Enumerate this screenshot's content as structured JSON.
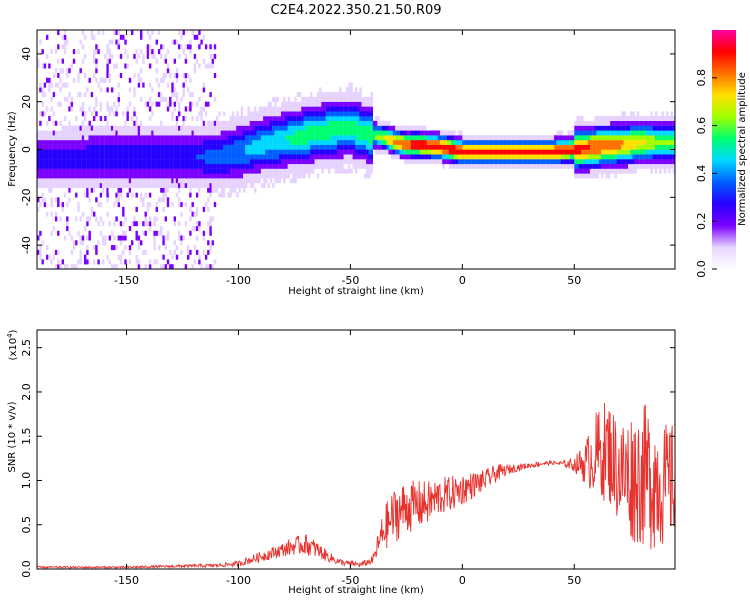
{
  "figure": {
    "title": "C2E4.2022.350.21.50.R09"
  },
  "chart_data": [
    {
      "type": "heatmap",
      "title": "C2E4.2022.350.21.50.R09",
      "xlabel": "Height of straight line (km)",
      "ylabel": "Frequency (Hz)",
      "xlim": [
        -190,
        95
      ],
      "ylim": [
        -50,
        50
      ],
      "xticks": [
        -150,
        -100,
        -50,
        0,
        50
      ],
      "yticks": [
        -40,
        -20,
        0,
        20,
        40
      ],
      "colorbar": {
        "label": "Normalized spectral amplitude",
        "range": [
          0,
          1
        ],
        "ticks": [
          "0.0",
          "0.2",
          "0.4",
          "0.6",
          "0.8"
        ],
        "colormap": [
          "#ffffff",
          "#e6d3ff",
          "#7a00ff",
          "#2600ff",
          "#0060ff",
          "#00d8ff",
          "#00ff70",
          "#a0ff00",
          "#ffe000",
          "#ff7000",
          "#ff0000",
          "#ff00a0"
        ]
      },
      "ridge": {
        "height_km": [
          -180,
          -160,
          -140,
          -125,
          -110,
          -100,
          -90,
          -80,
          -70,
          -60,
          -50,
          -45,
          -40,
          -35,
          -30,
          -25,
          -20,
          -10,
          0,
          10,
          20,
          30,
          40,
          50,
          60,
          70,
          80,
          90,
          95
        ],
        "frequency_hz": [
          -5,
          -4,
          -4,
          -4,
          -4,
          -2,
          1,
          3,
          5,
          7,
          8,
          6,
          5,
          4,
          2,
          1,
          1,
          0,
          -2,
          -2,
          -2,
          -2,
          -2,
          -1,
          0,
          1,
          2,
          2,
          2
        ],
        "peak_amplitude": [
          0.25,
          0.3,
          0.3,
          0.3,
          0.35,
          0.4,
          0.45,
          0.5,
          0.55,
          0.55,
          0.55,
          0.55,
          0.6,
          0.7,
          0.85,
          0.9,
          0.95,
          0.95,
          0.95,
          0.95,
          0.95,
          0.95,
          0.95,
          0.9,
          0.85,
          0.8,
          0.7,
          0.6,
          0.6
        ]
      }
    },
    {
      "type": "line",
      "xlabel": "Height of straight line (km)",
      "ylabel": "SNR (10 * v/v)",
      "yexponent": "(x10",
      "yexponent_power": "4",
      "yexponent_close": ")",
      "xlim": [
        -190,
        95
      ],
      "ylim": [
        0,
        2.7
      ],
      "xticks": [
        -150,
        -100,
        -50,
        0,
        50
      ],
      "yticks": [
        "0.0",
        "0.5",
        "1.0",
        "1.5",
        "2.0",
        "2.5"
      ],
      "series": [
        {
          "color": "#e8322e",
          "x": [
            -190,
            -150,
            -110,
            -100,
            -90,
            -80,
            -75,
            -70,
            -65,
            -60,
            -55,
            -50,
            -45,
            -40,
            -35,
            -30,
            -25,
            -20,
            -15,
            -10,
            -5,
            0,
            5,
            10,
            15,
            20,
            25,
            30,
            35,
            40,
            45,
            50,
            55,
            60,
            65,
            70,
            75,
            80,
            85,
            90,
            95
          ],
          "y": [
            0.02,
            0.02,
            0.04,
            0.06,
            0.14,
            0.22,
            0.26,
            0.28,
            0.22,
            0.14,
            0.08,
            0.06,
            0.05,
            0.1,
            0.45,
            0.62,
            0.7,
            0.72,
            0.75,
            0.82,
            0.85,
            0.9,
            0.95,
            1.0,
            1.08,
            1.12,
            1.15,
            1.17,
            1.19,
            1.2,
            1.19,
            1.18,
            1.2,
            1.3,
            1.35,
            1.1,
            1.05,
            1.05,
            1.05,
            0.95,
            1.0
          ],
          "noise": [
            0.01,
            0.01,
            0.02,
            0.03,
            0.06,
            0.08,
            0.1,
            0.12,
            0.1,
            0.06,
            0.04,
            0.03,
            0.03,
            0.05,
            0.25,
            0.32,
            0.3,
            0.28,
            0.25,
            0.22,
            0.2,
            0.18,
            0.15,
            0.12,
            0.1,
            0.06,
            0.04,
            0.03,
            0.03,
            0.02,
            0.03,
            0.08,
            0.25,
            0.5,
            0.6,
            0.6,
            0.75,
            0.8,
            0.85,
            0.7,
            0.65
          ]
        }
      ]
    }
  ]
}
